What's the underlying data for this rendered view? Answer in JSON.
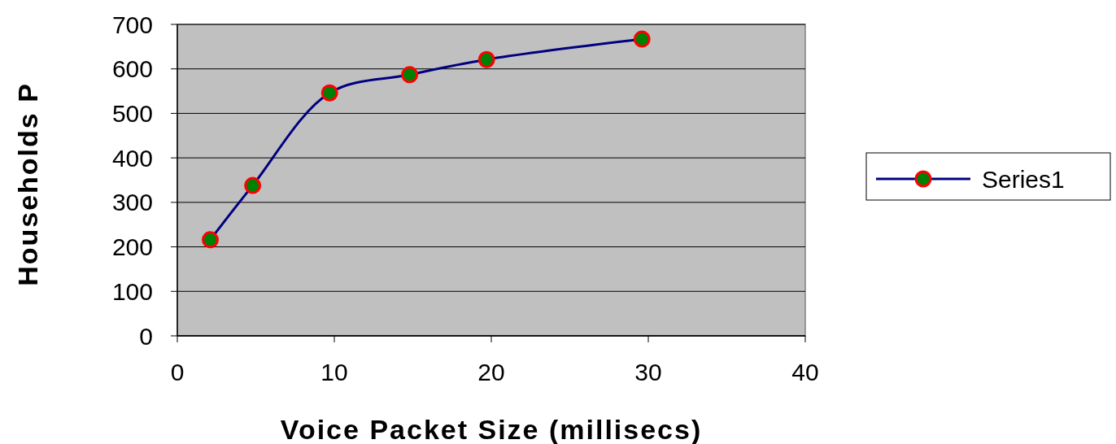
{
  "chart_data": {
    "type": "line",
    "xlabel": "Voice Packet Size (millisecs)",
    "ylabel": "Households P",
    "xlim": [
      0,
      40
    ],
    "xticks": [
      0,
      10,
      20,
      30,
      40
    ],
    "ylim": [
      0,
      700
    ],
    "yticks": [
      0,
      100,
      200,
      300,
      400,
      500,
      600,
      700
    ],
    "grid": "y",
    "legend": "right",
    "marker": "circle",
    "line_style": "solid",
    "series": [
      {
        "name": "Series1",
        "color": "#000080",
        "x": [
          2.1,
          4.8,
          9.7,
          14.8,
          19.7,
          29.6
        ],
        "values": [
          216,
          338,
          546,
          587,
          621,
          667
        ]
      }
    ]
  }
}
